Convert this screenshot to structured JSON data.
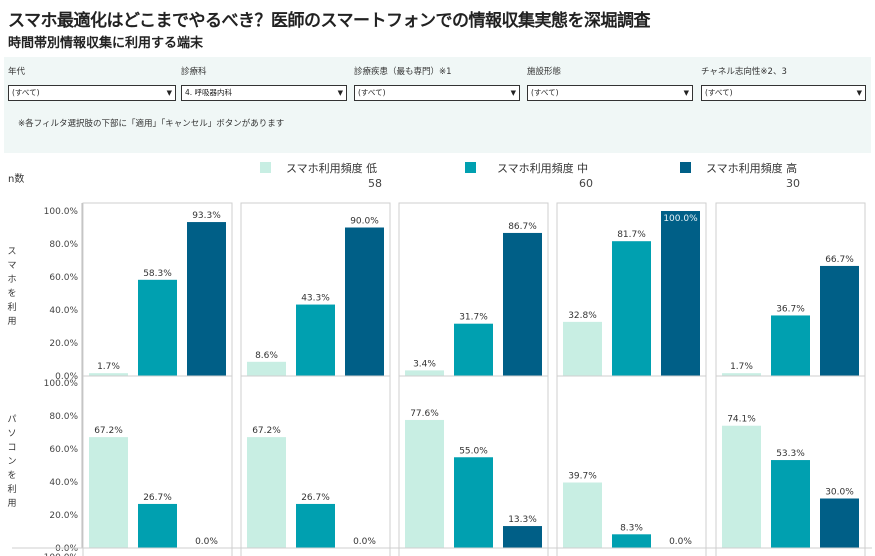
{
  "header": {
    "title": "スマホ最適化はどこまでやるべき？医師のスマートフォンでの情報収集実態を深堀調査",
    "subtitle": "時間帯別情報収集に利用する端末"
  },
  "filters": [
    {
      "label": "年代",
      "value": "(すべて)"
    },
    {
      "label": "診療科",
      "value": "4. 呼吸器内科"
    },
    {
      "label": "診療疾患（最も専門）※1",
      "value": "(すべて)"
    },
    {
      "label": "施設形態",
      "value": "(すべて)"
    },
    {
      "label": "チャネル志向性※2、3",
      "value": "(すべて)"
    }
  ],
  "filter_note": "※各フィルタ選択肢の下部に「適用」「キャンセル」ボタンがあります",
  "ncount_label": "n数",
  "legend": [
    {
      "label": "スマホ利用頻度 低",
      "n": "58",
      "color": "#c8eee3"
    },
    {
      "label": "スマホ利用頻度 中",
      "n": "60",
      "color": "#00a0b0"
    },
    {
      "label": "スマホ利用頻度 高",
      "n": "30",
      "color": "#005f87"
    }
  ],
  "row_labels": [
    "スマホを利用",
    "パソコンを利用"
  ],
  "chart_data": {
    "type": "bar",
    "y_ticks": [
      "100.0%",
      "80.0%",
      "60.0%",
      "40.0%",
      "20.0%",
      "0.0%"
    ],
    "ylim": [
      0,
      100
    ],
    "series_names": [
      "スマホ利用頻度 低",
      "スマホ利用頻度 中",
      "スマホ利用頻度 高"
    ],
    "rows": [
      {
        "name": "スマホを利用",
        "panels": [
          [
            1.7,
            58.3,
            93.3
          ],
          [
            8.6,
            43.3,
            90.0
          ],
          [
            3.4,
            31.7,
            86.7
          ],
          [
            32.8,
            81.7,
            100.0
          ],
          [
            1.7,
            36.7,
            66.7
          ]
        ]
      },
      {
        "name": "パソコンを利用",
        "panels": [
          [
            67.2,
            26.7,
            0.0
          ],
          [
            67.2,
            26.7,
            0.0
          ],
          [
            77.6,
            55.0,
            13.3
          ],
          [
            39.7,
            8.3,
            0.0
          ],
          [
            74.1,
            53.3,
            30.0
          ]
        ]
      }
    ]
  }
}
